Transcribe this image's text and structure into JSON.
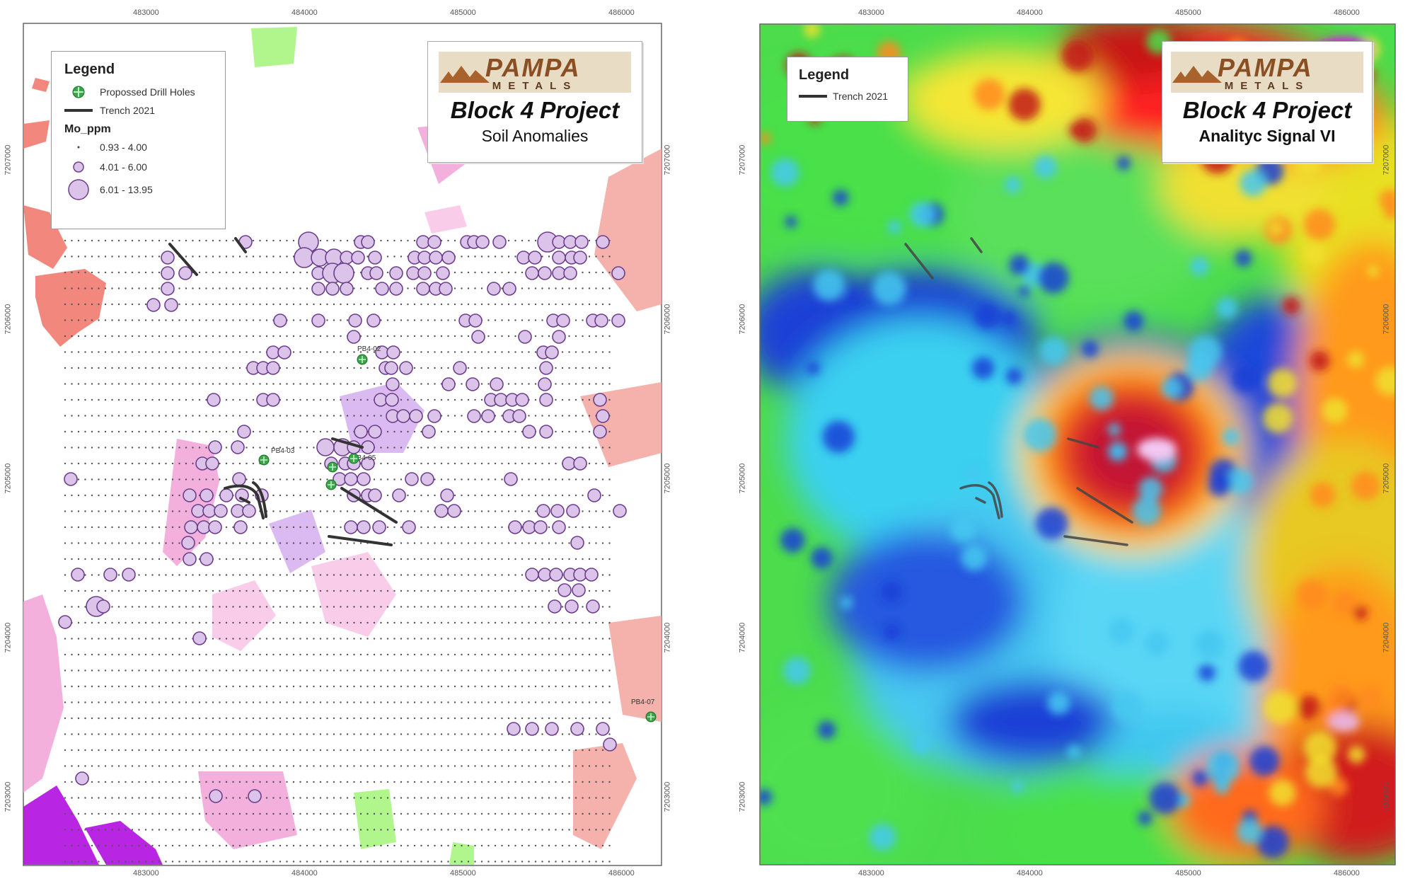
{
  "left_map": {
    "legend": {
      "title": "Legend",
      "drill_holes_label": "Propossed Drill Holes",
      "trench_label": "Trench 2021",
      "mo_title": "Mo_ppm",
      "classes": [
        "0.93 - 4.00",
        "4.01 - 6.00",
        "6.01 - 13.95"
      ]
    },
    "title_box": {
      "logo_text": "PAMPA",
      "logo_sub": "METALS",
      "project": "Block 4 Project",
      "subtitle": "Soil Anomalies"
    },
    "drill_hole_labels": [
      "PB4-02",
      "PB4-03",
      "PB4-05",
      "PB4-07"
    ]
  },
  "right_map": {
    "legend": {
      "title": "Legend",
      "trench_label": "Trench 2021"
    },
    "title_box": {
      "logo_text": "PAMPA",
      "logo_sub": "METALS",
      "project": "Block 4 Project",
      "subtitle": "Analityc Signal VI"
    }
  },
  "axes": {
    "x_ticks": [
      "483000",
      "484000",
      "485000",
      "486000"
    ],
    "y_ticks": [
      "7207000",
      "7206000",
      "7205000",
      "7204000",
      "7203000"
    ]
  },
  "colors": {
    "trench": "#333333",
    "circle_fill": "#dcc3ea",
    "circle_stroke": "#6b3f8a",
    "drill": "#3aa64a"
  }
}
